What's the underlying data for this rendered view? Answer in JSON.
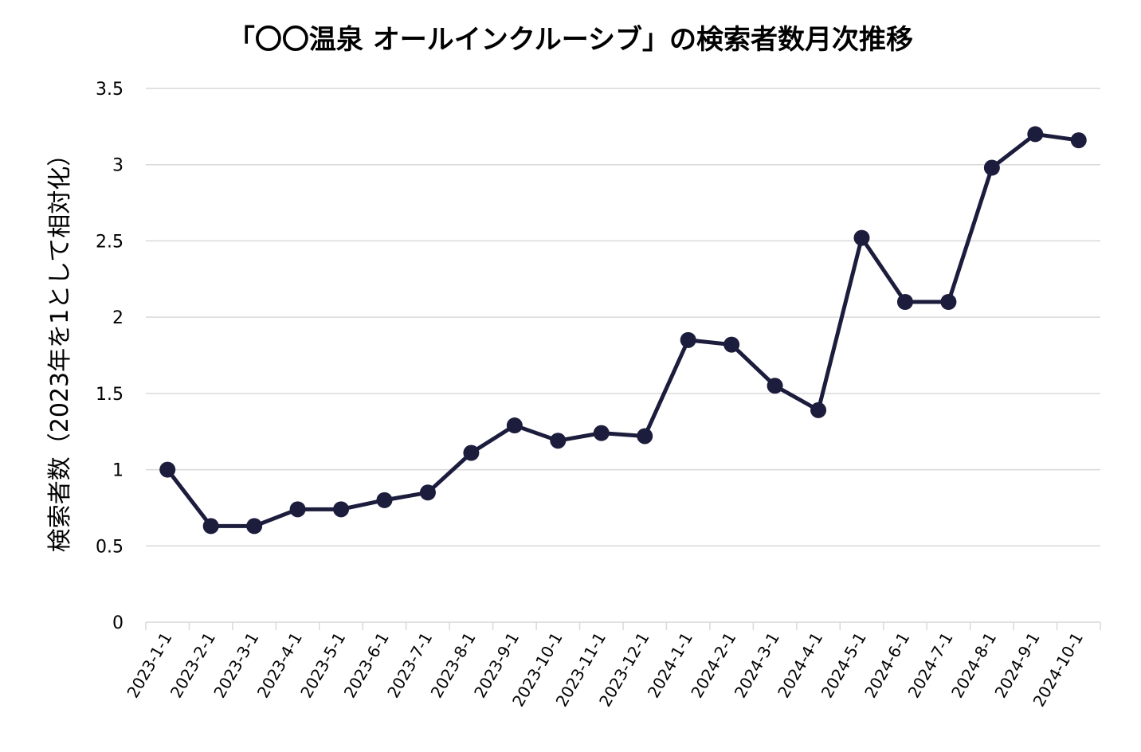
{
  "chart_data": {
    "type": "line",
    "title": "「〇〇温泉 オールインクルーシブ」の検索者数月次推移",
    "ylabel": "検索者数（2023年を1として相対化）",
    "xlabel": "",
    "ylim": [
      0,
      3.5
    ],
    "yticks": [
      "0",
      "0.5",
      "1",
      "1.5",
      "2",
      "2.5",
      "3",
      "3.5"
    ],
    "grid": true,
    "line_color": "#1c1c3d",
    "categories": [
      "2023-1-1",
      "2023-2-1",
      "2023-3-1",
      "2023-4-1",
      "2023-5-1",
      "2023-6-1",
      "2023-7-1",
      "2023-8-1",
      "2023-9-1",
      "2023-10-1",
      "2023-11-1",
      "2023-12-1",
      "2024-1-1",
      "2024-2-1",
      "2024-3-1",
      "2024-4-1",
      "2024-5-1",
      "2024-6-1",
      "2024-7-1",
      "2024-8-1",
      "2024-9-1",
      "2024-10-1"
    ],
    "values": [
      1.0,
      0.63,
      0.63,
      0.74,
      0.74,
      0.8,
      0.85,
      1.11,
      1.29,
      1.19,
      1.24,
      1.22,
      1.85,
      1.82,
      1.55,
      1.39,
      2.52,
      2.1,
      2.1,
      2.98,
      3.2,
      3.16
    ]
  }
}
